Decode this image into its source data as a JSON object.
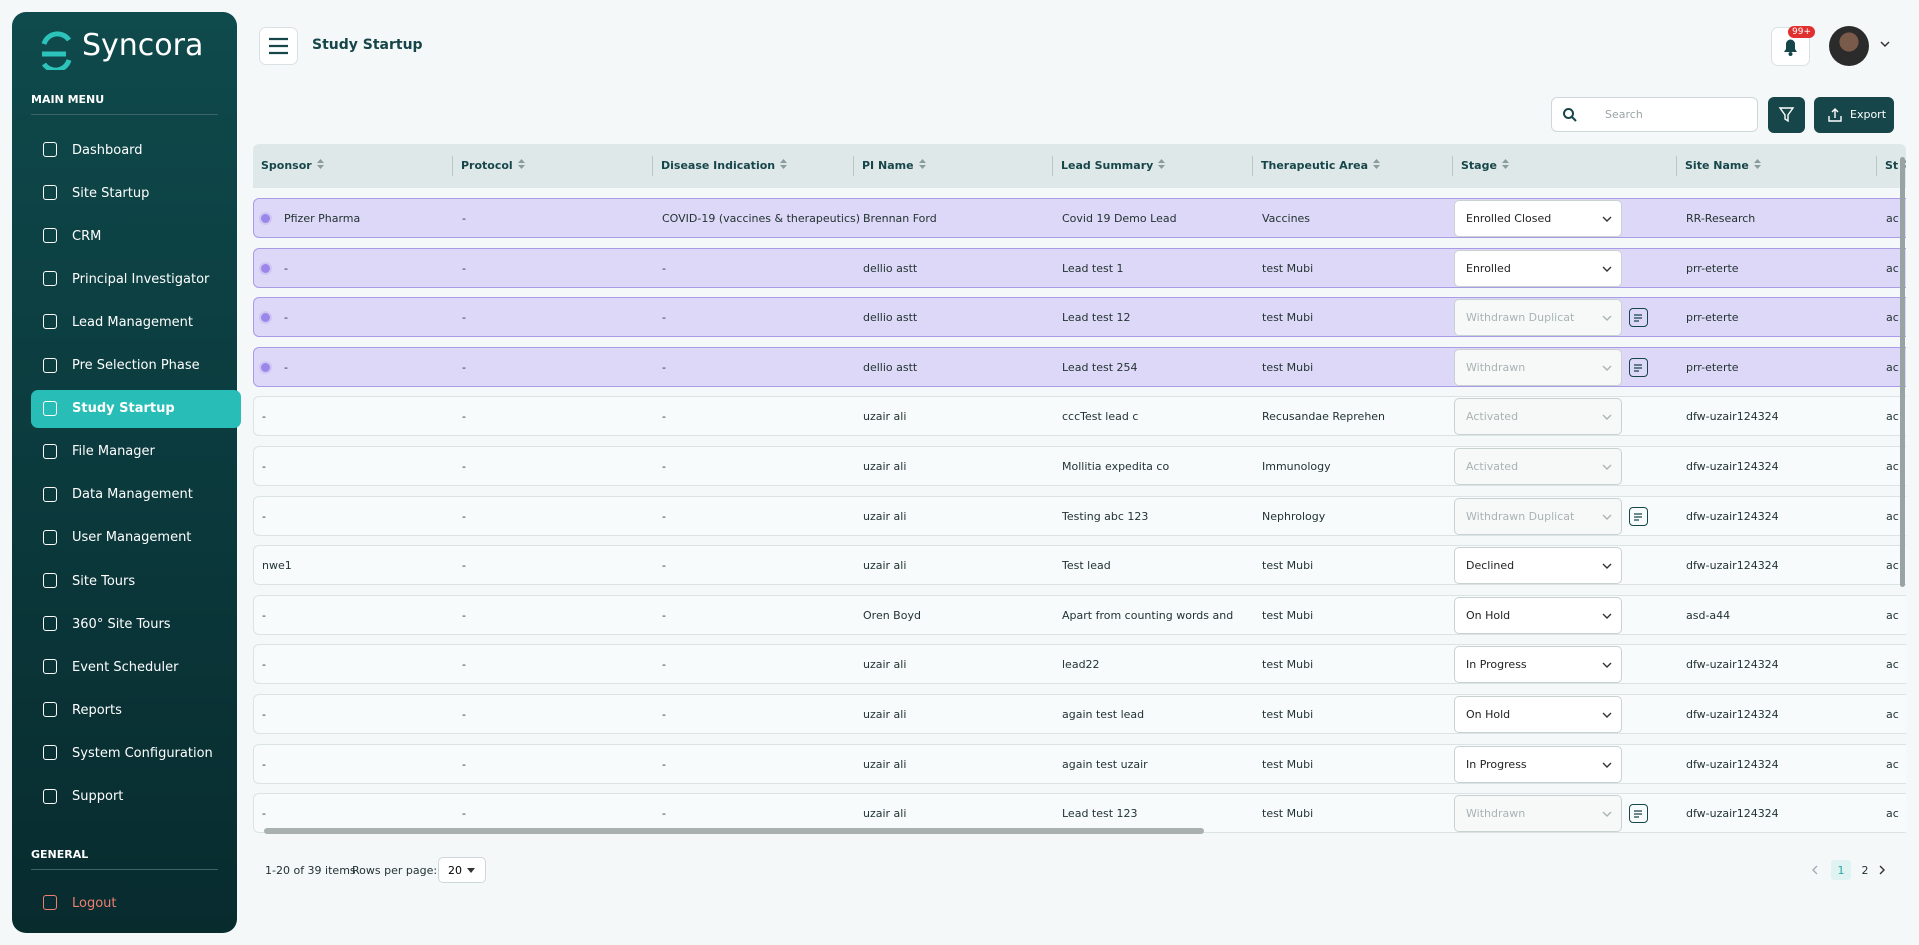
{
  "sidebar": {
    "brand": "Syncora",
    "main_menu_label": "MAIN MENU",
    "menu": [
      "Dashboard",
      "Site Startup",
      "CRM",
      "Principal Investigator",
      "Lead Management",
      "Pre Selection Phase",
      "Study Startup",
      "File Manager",
      "Data Management",
      "User Management",
      "Site Tours",
      "360° Site Tours",
      "Event Scheduler",
      "Reports",
      "System Configuration",
      "Support"
    ],
    "active_index": 6,
    "general_label": "GENERAL",
    "logout": "Logout"
  },
  "header": {
    "title": "Study Startup",
    "notification_badge": "99+"
  },
  "toolbar": {
    "search_placeholder": "Search",
    "export": "Export"
  },
  "table": {
    "columns": [
      "Sponsor",
      "Protocol",
      "Disease Indication",
      "PI Name",
      "Lead Summary",
      "Therapeutic Area",
      "Stage",
      "Site Name",
      "St"
    ],
    "rows": [
      {
        "cells": [
          "Pfizer Pharma",
          "-",
          "COVID-19 (vaccines & therapeutics)",
          "Brennan Ford",
          "Covid 19 Demo Lead",
          "Vaccines",
          "Enrolled Closed",
          "RR-Research",
          "ac"
        ],
        "selected": true,
        "stage_disabled": false,
        "note": false
      },
      {
        "cells": [
          "-",
          "-",
          "-",
          "dellio astt",
          "Lead test 1",
          "test Mubi",
          "Enrolled",
          "prr-eterte",
          "ac"
        ],
        "selected": true,
        "stage_disabled": false,
        "note": false
      },
      {
        "cells": [
          "-",
          "-",
          "-",
          "dellio astt",
          "Lead test 12",
          "test Mubi",
          "Withdrawn Duplicat",
          "prr-eterte",
          "ac"
        ],
        "selected": true,
        "stage_disabled": true,
        "note": true
      },
      {
        "cells": [
          "-",
          "-",
          "-",
          "dellio astt",
          "Lead test 254",
          "test Mubi",
          "Withdrawn",
          "prr-eterte",
          "ac"
        ],
        "selected": true,
        "stage_disabled": true,
        "note": true
      },
      {
        "cells": [
          "-",
          "-",
          "-",
          "uzair ali",
          "cccTest lead c",
          "Recusandae Reprehen",
          "Activated",
          "dfw-uzair124324",
          "ac"
        ],
        "selected": false,
        "stage_disabled": true,
        "note": false
      },
      {
        "cells": [
          "-",
          "-",
          "-",
          "uzair ali",
          "Mollitia expedita co",
          "Immunology",
          "Activated",
          "dfw-uzair124324",
          "ac"
        ],
        "selected": false,
        "stage_disabled": true,
        "note": false
      },
      {
        "cells": [
          "-",
          "-",
          "-",
          "uzair ali",
          "Testing abc 123",
          "Nephrology",
          "Withdrawn Duplicat",
          "dfw-uzair124324",
          "ac"
        ],
        "selected": false,
        "stage_disabled": true,
        "note": true
      },
      {
        "cells": [
          "nwe1",
          "-",
          "-",
          "uzair ali",
          "Test lead",
          "test Mubi",
          "Declined",
          "dfw-uzair124324",
          "ac"
        ],
        "selected": false,
        "stage_disabled": false,
        "note": false
      },
      {
        "cells": [
          "-",
          "-",
          "-",
          "Oren Boyd",
          "Apart from counting words and",
          "test Mubi",
          "On Hold",
          "asd-a44",
          "ac"
        ],
        "selected": false,
        "stage_disabled": false,
        "note": false
      },
      {
        "cells": [
          "-",
          "-",
          "-",
          "uzair ali",
          "lead22",
          "test Mubi",
          "In Progress",
          "dfw-uzair124324",
          "ac"
        ],
        "selected": false,
        "stage_disabled": false,
        "note": false
      },
      {
        "cells": [
          "-",
          "-",
          "-",
          "uzair ali",
          "again test lead",
          "test Mubi",
          "On Hold",
          "dfw-uzair124324",
          "ac"
        ],
        "selected": false,
        "stage_disabled": false,
        "note": false
      },
      {
        "cells": [
          "-",
          "-",
          "-",
          "uzair ali",
          "again test uzair",
          "test Mubi",
          "In Progress",
          "dfw-uzair124324",
          "ac"
        ],
        "selected": false,
        "stage_disabled": false,
        "note": false
      },
      {
        "cells": [
          "-",
          "-",
          "-",
          "uzair ali",
          "Lead test 123",
          "test Mubi",
          "Withdrawn",
          "dfw-uzair124324",
          "ac"
        ],
        "selected": false,
        "stage_disabled": true,
        "note": true
      }
    ]
  },
  "footer": {
    "range": "1-20 of 39 items",
    "rows_per_page_label": "Rows per page:",
    "rows_per_page": "20",
    "pages": [
      "1",
      "2"
    ],
    "current_page": 0
  }
}
